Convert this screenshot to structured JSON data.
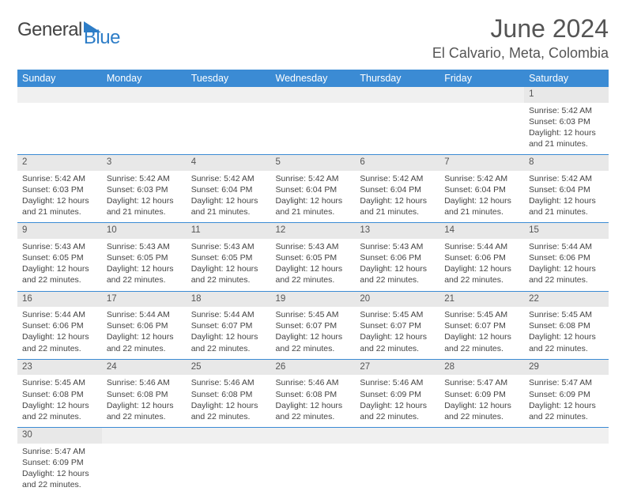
{
  "logo": {
    "general": "General",
    "blue": "Blue"
  },
  "title": "June 2024",
  "location": "El Calvario, Meta, Colombia",
  "colors": {
    "header_bg": "#3b8bd4",
    "header_text": "#ffffff",
    "daynum_bg": "#e8e8e8",
    "empty_bg": "#f0f0f0",
    "border": "#3b8bd4",
    "logo_blue": "#2d7dc7"
  },
  "weekdays": [
    "Sunday",
    "Monday",
    "Tuesday",
    "Wednesday",
    "Thursday",
    "Friday",
    "Saturday"
  ],
  "weeks": [
    [
      null,
      null,
      null,
      null,
      null,
      null,
      {
        "day": "1",
        "sunrise": "5:42 AM",
        "sunset": "6:03 PM",
        "daylight": "12 hours and 21 minutes."
      }
    ],
    [
      {
        "day": "2",
        "sunrise": "5:42 AM",
        "sunset": "6:03 PM",
        "daylight": "12 hours and 21 minutes."
      },
      {
        "day": "3",
        "sunrise": "5:42 AM",
        "sunset": "6:03 PM",
        "daylight": "12 hours and 21 minutes."
      },
      {
        "day": "4",
        "sunrise": "5:42 AM",
        "sunset": "6:04 PM",
        "daylight": "12 hours and 21 minutes."
      },
      {
        "day": "5",
        "sunrise": "5:42 AM",
        "sunset": "6:04 PM",
        "daylight": "12 hours and 21 minutes."
      },
      {
        "day": "6",
        "sunrise": "5:42 AM",
        "sunset": "6:04 PM",
        "daylight": "12 hours and 21 minutes."
      },
      {
        "day": "7",
        "sunrise": "5:42 AM",
        "sunset": "6:04 PM",
        "daylight": "12 hours and 21 minutes."
      },
      {
        "day": "8",
        "sunrise": "5:42 AM",
        "sunset": "6:04 PM",
        "daylight": "12 hours and 21 minutes."
      }
    ],
    [
      {
        "day": "9",
        "sunrise": "5:43 AM",
        "sunset": "6:05 PM",
        "daylight": "12 hours and 22 minutes."
      },
      {
        "day": "10",
        "sunrise": "5:43 AM",
        "sunset": "6:05 PM",
        "daylight": "12 hours and 22 minutes."
      },
      {
        "day": "11",
        "sunrise": "5:43 AM",
        "sunset": "6:05 PM",
        "daylight": "12 hours and 22 minutes."
      },
      {
        "day": "12",
        "sunrise": "5:43 AM",
        "sunset": "6:05 PM",
        "daylight": "12 hours and 22 minutes."
      },
      {
        "day": "13",
        "sunrise": "5:43 AM",
        "sunset": "6:06 PM",
        "daylight": "12 hours and 22 minutes."
      },
      {
        "day": "14",
        "sunrise": "5:44 AM",
        "sunset": "6:06 PM",
        "daylight": "12 hours and 22 minutes."
      },
      {
        "day": "15",
        "sunrise": "5:44 AM",
        "sunset": "6:06 PM",
        "daylight": "12 hours and 22 minutes."
      }
    ],
    [
      {
        "day": "16",
        "sunrise": "5:44 AM",
        "sunset": "6:06 PM",
        "daylight": "12 hours and 22 minutes."
      },
      {
        "day": "17",
        "sunrise": "5:44 AM",
        "sunset": "6:06 PM",
        "daylight": "12 hours and 22 minutes."
      },
      {
        "day": "18",
        "sunrise": "5:44 AM",
        "sunset": "6:07 PM",
        "daylight": "12 hours and 22 minutes."
      },
      {
        "day": "19",
        "sunrise": "5:45 AM",
        "sunset": "6:07 PM",
        "daylight": "12 hours and 22 minutes."
      },
      {
        "day": "20",
        "sunrise": "5:45 AM",
        "sunset": "6:07 PM",
        "daylight": "12 hours and 22 minutes."
      },
      {
        "day": "21",
        "sunrise": "5:45 AM",
        "sunset": "6:07 PM",
        "daylight": "12 hours and 22 minutes."
      },
      {
        "day": "22",
        "sunrise": "5:45 AM",
        "sunset": "6:08 PM",
        "daylight": "12 hours and 22 minutes."
      }
    ],
    [
      {
        "day": "23",
        "sunrise": "5:45 AM",
        "sunset": "6:08 PM",
        "daylight": "12 hours and 22 minutes."
      },
      {
        "day": "24",
        "sunrise": "5:46 AM",
        "sunset": "6:08 PM",
        "daylight": "12 hours and 22 minutes."
      },
      {
        "day": "25",
        "sunrise": "5:46 AM",
        "sunset": "6:08 PM",
        "daylight": "12 hours and 22 minutes."
      },
      {
        "day": "26",
        "sunrise": "5:46 AM",
        "sunset": "6:08 PM",
        "daylight": "12 hours and 22 minutes."
      },
      {
        "day": "27",
        "sunrise": "5:46 AM",
        "sunset": "6:09 PM",
        "daylight": "12 hours and 22 minutes."
      },
      {
        "day": "28",
        "sunrise": "5:47 AM",
        "sunset": "6:09 PM",
        "daylight": "12 hours and 22 minutes."
      },
      {
        "day": "29",
        "sunrise": "5:47 AM",
        "sunset": "6:09 PM",
        "daylight": "12 hours and 22 minutes."
      }
    ],
    [
      {
        "day": "30",
        "sunrise": "5:47 AM",
        "sunset": "6:09 PM",
        "daylight": "12 hours and 22 minutes."
      },
      null,
      null,
      null,
      null,
      null,
      null
    ]
  ],
  "labels": {
    "sunrise": "Sunrise: ",
    "sunset": "Sunset: ",
    "daylight": "Daylight: "
  }
}
